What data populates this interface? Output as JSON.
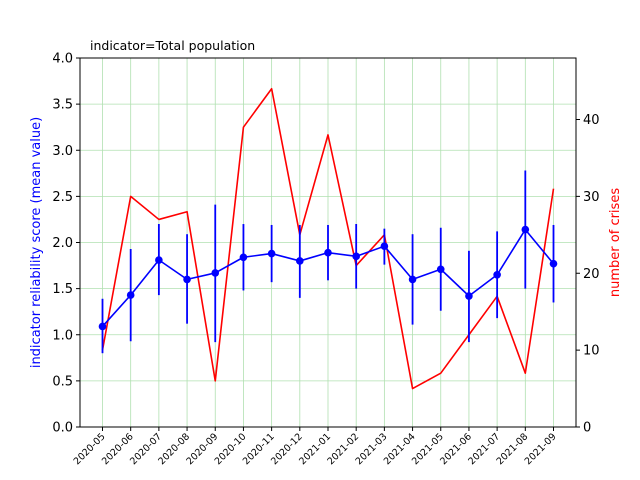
{
  "chart_data": {
    "type": "line",
    "title": "indicator=Total population",
    "ylabel": "indicator reliability score (mean value)",
    "y2label": "number of crises",
    "ylim": [
      0,
      4.0
    ],
    "y2lim": [
      0,
      48
    ],
    "yticks": [
      "0.0",
      "0.5",
      "1.0",
      "1.5",
      "2.0",
      "2.5",
      "3.0",
      "3.5",
      "4.0"
    ],
    "y2ticks": [
      "0",
      "10",
      "20",
      "30",
      "40"
    ],
    "grid": true,
    "categories": [
      "2020-05",
      "2020-06",
      "2020-07",
      "2020-08",
      "2020-09",
      "2020-10",
      "2020-11",
      "2020-12",
      "2021-01",
      "2021-02",
      "2021-03",
      "2021-04",
      "2021-05",
      "2021-06",
      "2021-07",
      "2021-08",
      "2021-09"
    ],
    "series": [
      {
        "axis": "left",
        "color": "#0000ff",
        "style": "line-markers-errorbars",
        "values": [
          1.09,
          1.43,
          1.81,
          1.6,
          1.67,
          1.84,
          1.88,
          1.8,
          1.89,
          1.85,
          1.96,
          1.6,
          1.71,
          1.42,
          1.65,
          2.14,
          1.77
        ],
        "error_low": [
          0.8,
          0.93,
          1.43,
          1.12,
          0.92,
          1.48,
          1.57,
          1.4,
          1.59,
          1.5,
          1.76,
          1.11,
          1.26,
          0.92,
          1.18,
          1.5,
          1.35
        ],
        "error_high": [
          1.39,
          1.93,
          2.2,
          2.09,
          2.41,
          2.2,
          2.19,
          2.19,
          2.19,
          2.2,
          2.15,
          2.09,
          2.16,
          1.91,
          2.12,
          2.78,
          2.19
        ]
      },
      {
        "axis": "right",
        "color": "#ff0000",
        "style": "line",
        "values": [
          10,
          30,
          27,
          28,
          6,
          39,
          44,
          25,
          38,
          21,
          25,
          5,
          7,
          12,
          17,
          7,
          31
        ]
      }
    ]
  }
}
